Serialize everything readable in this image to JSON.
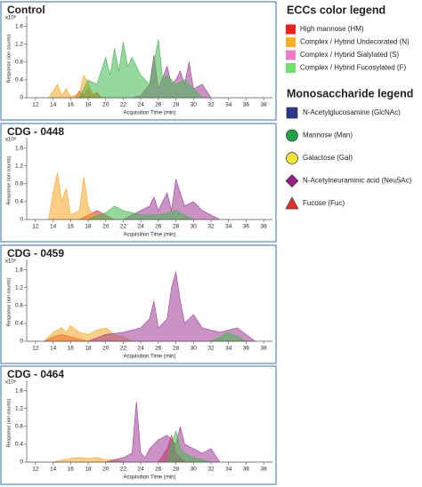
{
  "chart_data": [
    {
      "type": "area",
      "title": "Control",
      "xlabel": "Acquisition Time (min)",
      "ylabel": "Response (ion counts)",
      "yunit": "x10⁶",
      "xlim": [
        11,
        39
      ],
      "xticks": [
        12,
        14,
        16,
        18,
        20,
        22,
        24,
        26,
        28,
        30,
        32,
        34,
        36,
        38
      ],
      "ylim": [
        0,
        1.75
      ],
      "yticks": [
        0,
        0.4,
        0.8,
        1.2,
        1.6
      ],
      "series": [
        {
          "color": "#e52b2b",
          "x": [
            16.5,
            17,
            17.5,
            18,
            18.5,
            19,
            19.5
          ],
          "values": [
            0,
            0.15,
            0.05,
            0.2,
            0.05,
            0.12,
            0
          ]
        },
        {
          "color": "#f5a623",
          "x": [
            13.5,
            14.5,
            15,
            15.5,
            16,
            17,
            17.5,
            18,
            18.5,
            19,
            20
          ],
          "values": [
            0,
            0.3,
            0.05,
            0.2,
            0.02,
            0.1,
            0.5,
            0.35,
            0.1,
            0.05,
            0
          ]
        },
        {
          "color": "#a03a96",
          "x": [
            23,
            24,
            25,
            25.5,
            26,
            27,
            27.5,
            28,
            28.5,
            29,
            29.5,
            30,
            31,
            32
          ],
          "values": [
            0,
            0.05,
            0.3,
            0.95,
            0.2,
            0.7,
            0.3,
            0.4,
            0.6,
            0.3,
            0.8,
            0.2,
            0.3,
            0
          ]
        },
        {
          "color": "#3fb84a",
          "x": [
            17,
            18,
            19,
            20,
            20.5,
            21,
            21.5,
            22,
            22.5,
            23,
            24,
            25,
            26,
            26.5,
            27,
            28,
            29,
            30,
            31
          ],
          "values": [
            0,
            0.4,
            0.3,
            0.9,
            0.5,
            1.1,
            0.6,
            1.25,
            0.7,
            0.9,
            0.5,
            0.3,
            1.3,
            0.4,
            0.5,
            0.3,
            0.4,
            0.2,
            0
          ]
        }
      ]
    },
    {
      "type": "area",
      "title": "CDG - 0448",
      "xlabel": "Acquisition Time (min)",
      "ylabel": "Response (ion counts)",
      "yunit": "x10⁶",
      "xlim": [
        11,
        39
      ],
      "xticks": [
        12,
        14,
        16,
        18,
        20,
        22,
        24,
        26,
        28,
        30,
        32,
        34,
        36,
        38
      ],
      "ylim": [
        0,
        1.75
      ],
      "yticks": [
        0,
        0.4,
        0.8,
        1.2,
        1.6
      ],
      "series": [
        {
          "color": "#e52b2b",
          "x": [
            17,
            18,
            19,
            20,
            21
          ],
          "values": [
            0,
            0.1,
            0.2,
            0.1,
            0
          ]
        },
        {
          "color": "#f5a623",
          "x": [
            13.5,
            14,
            14.5,
            15,
            15.5,
            16,
            17,
            17.5,
            18,
            18.5,
            19.5
          ],
          "values": [
            0,
            0.6,
            1.05,
            0.4,
            0.7,
            0.1,
            0.2,
            0.95,
            0.3,
            0.1,
            0
          ]
        },
        {
          "color": "#a03a96",
          "x": [
            22,
            24,
            25,
            25.5,
            26,
            27,
            27.5,
            28,
            29,
            30,
            31,
            33
          ],
          "values": [
            0,
            0.2,
            0.3,
            0.5,
            0.2,
            0.6,
            0.2,
            0.9,
            0.3,
            0.4,
            0.2,
            0
          ]
        },
        {
          "color": "#3fb84a",
          "x": [
            18,
            19,
            20,
            21,
            22,
            23,
            24,
            26,
            28,
            29,
            30
          ],
          "values": [
            0,
            0.1,
            0.15,
            0.3,
            0.2,
            0.15,
            0.1,
            0.1,
            0.2,
            0.1,
            0
          ]
        }
      ]
    },
    {
      "type": "area",
      "title": "CDG - 0459",
      "xlabel": "Acquisition Time (min)",
      "ylabel": "Response (ion counts)",
      "yunit": "x10⁶",
      "xlim": [
        11,
        39
      ],
      "xticks": [
        12,
        14,
        16,
        18,
        20,
        22,
        24,
        26,
        28,
        30,
        32,
        34,
        36,
        38
      ],
      "ylim": [
        0,
        1.75
      ],
      "yticks": [
        0,
        0.4,
        0.8,
        1.2,
        1.6
      ],
      "series": [
        {
          "color": "#e52b2b",
          "x": [
            13,
            14,
            15,
            16,
            17,
            18
          ],
          "values": [
            0,
            0.1,
            0.15,
            0.1,
            0.05,
            0
          ]
        },
        {
          "color": "#f5a623",
          "x": [
            13,
            14,
            15,
            15.5,
            16,
            17,
            18,
            19,
            20,
            21,
            22,
            23
          ],
          "values": [
            0,
            0.2,
            0.3,
            0.2,
            0.35,
            0.2,
            0.15,
            0.25,
            0.3,
            0.15,
            0.1,
            0
          ]
        },
        {
          "color": "#a03a96",
          "x": [
            18,
            20,
            22,
            24,
            25,
            25.5,
            26,
            27,
            27.5,
            28,
            28.5,
            29,
            30,
            31,
            33,
            35,
            37
          ],
          "values": [
            0,
            0.15,
            0.2,
            0.3,
            0.5,
            0.9,
            0.3,
            0.5,
            1.2,
            1.55,
            0.9,
            0.4,
            0.6,
            0.3,
            0.2,
            0.3,
            0
          ]
        },
        {
          "color": "#3fb84a",
          "x": [
            32,
            33,
            34,
            35,
            36
          ],
          "values": [
            0,
            0.1,
            0.2,
            0.1,
            0
          ]
        }
      ]
    },
    {
      "type": "area",
      "title": "CDG - 0464",
      "xlabel": "Acquisition Time (min)",
      "ylabel": "Response (ion counts)",
      "yunit": "x10⁶",
      "xlim": [
        11,
        39
      ],
      "xticks": [
        12,
        14,
        16,
        18,
        20,
        22,
        24,
        26,
        28,
        30,
        32,
        34,
        36,
        38
      ],
      "ylim": [
        0,
        1.75
      ],
      "yticks": [
        0,
        0.4,
        0.8,
        1.2,
        1.6
      ],
      "series": [
        {
          "color": "#e52b2b",
          "x": [
            26,
            27,
            27.5,
            28,
            29
          ],
          "values": [
            0,
            0.3,
            0.6,
            0.2,
            0
          ]
        },
        {
          "color": "#f5a623",
          "x": [
            14,
            15,
            16,
            17,
            18,
            19,
            20,
            21,
            22
          ],
          "values": [
            0,
            0.05,
            0.08,
            0.1,
            0.08,
            0.1,
            0.05,
            0.05,
            0
          ]
        },
        {
          "color": "#a03a96",
          "x": [
            20,
            22,
            23,
            23.5,
            24,
            24.5,
            25,
            26,
            27,
            28,
            28.5,
            29,
            30,
            31,
            32,
            33
          ],
          "values": [
            0,
            0.1,
            0.2,
            1.35,
            0.2,
            0.1,
            0.3,
            0.5,
            0.6,
            0.4,
            0.8,
            0.4,
            0.3,
            0.2,
            0.3,
            0
          ]
        },
        {
          "color": "#3fb84a",
          "x": [
            27,
            27.5,
            28,
            28.5,
            29,
            30,
            31,
            32
          ],
          "values": [
            0,
            0.4,
            0.7,
            0.3,
            0.2,
            0.1,
            0.05,
            0
          ]
        }
      ]
    }
  ],
  "ecc_legend": {
    "title": "ECCs color legend",
    "items": [
      {
        "label": "High mannose (HM)",
        "color": "#ee2020"
      },
      {
        "label": "Complex / Hybrid Undecorated (N)",
        "color": "#f9b21f"
      },
      {
        "label": "Complex / Hybrid Sialylated (S)",
        "color": "#f07cc8"
      },
      {
        "label": "Complex / Hybrid Fucosylated (F)",
        "color": "#6fe06a"
      }
    ]
  },
  "mono_legend": {
    "title": "Monosaccharide legend",
    "items": [
      {
        "label": "N-Acetylglucosamine (GlcNAc)",
        "color": "#2b3a8f",
        "shape": "square"
      },
      {
        "label": "Mannose (Man)",
        "color": "#21a34a",
        "shape": "circle"
      },
      {
        "label": "Galactose (Gal)",
        "color": "#f2e33a",
        "shape": "circle"
      },
      {
        "label": "N-Acetylneuraminic acid (Neu5Ac)",
        "color": "#96208a",
        "shape": "diamond"
      },
      {
        "label": "Fucose (Fuc)",
        "color": "#e0312f",
        "shape": "triangle"
      }
    ]
  }
}
